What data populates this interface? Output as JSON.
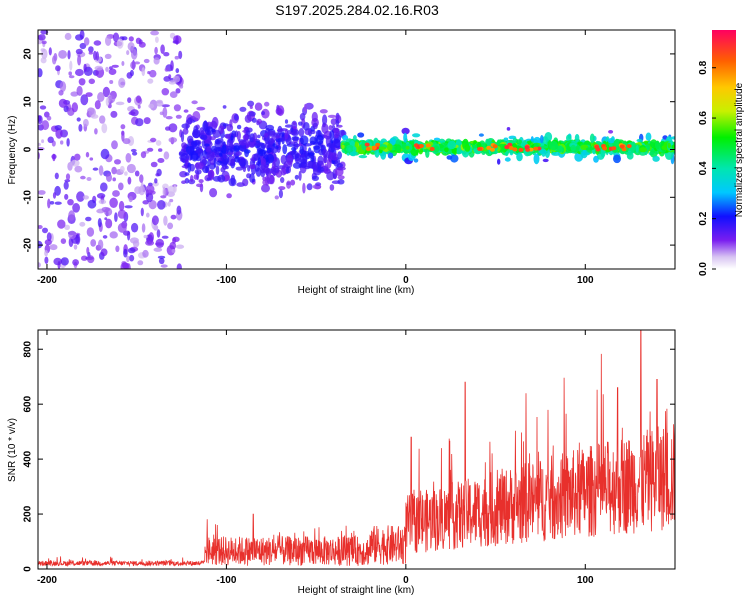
{
  "title": "S197.2025.284.02.16.R03",
  "chart_data": [
    {
      "type": "heatmap",
      "name": "spectrogram",
      "xlabel": "Height of straight line (km)",
      "ylabel": "Frequency (Hz)",
      "xlim": [
        -205,
        150
      ],
      "ylim": [
        -25,
        25
      ],
      "xticks": [
        -200,
        -100,
        0,
        100
      ],
      "yticks": [
        -20,
        -10,
        0,
        10,
        20
      ],
      "colorbar": {
        "label": "Normalized spectral amplitude",
        "range": [
          0.0,
          0.95
        ],
        "ticks": [
          "0.0",
          "0.2",
          "0.4",
          "0.6",
          "0.8"
        ],
        "tick_values": [
          0.0,
          0.2,
          0.4,
          0.6,
          0.8
        ]
      },
      "regions": [
        {
          "x": [
            -205,
            -125
          ],
          "freq_center": 0,
          "freq_spread": 25,
          "amplitude": 0.12,
          "description": "broadband noise"
        },
        {
          "x": [
            -125,
            -35
          ],
          "freq_center": 0,
          "freq_spread": 8,
          "amplitude": 0.15,
          "description": "noisy band"
        },
        {
          "x": [
            -35,
            150
          ],
          "freq_center": 0.5,
          "freq_spread": 2,
          "amplitude": 0.55,
          "description": "coherent signal"
        }
      ],
      "peak_x": [
        -18,
        10,
        45,
        60,
        70,
        110,
        120
      ]
    },
    {
      "type": "line",
      "name": "snr",
      "xlabel": "Height of straight line (km)",
      "ylabel": "SNR (10 * v/v)",
      "xlim": [
        -205,
        150
      ],
      "ylim": [
        0,
        870
      ],
      "xticks": [
        -200,
        -100,
        0,
        100
      ],
      "yticks": [
        0,
        200,
        400,
        600,
        800
      ],
      "series": [
        {
          "name": "SNR",
          "color": "#e8302c",
          "segments": [
            {
              "x": [
                -205,
                -112
              ],
              "base": 20,
              "noise": 15
            },
            {
              "x": [
                -112,
                -20
              ],
              "base": 60,
              "noise": 90
            },
            {
              "x": [
                -20,
                0
              ],
              "base": 80,
              "noise": 120
            },
            {
              "x": [
                0,
                150
              ],
              "base": 250,
              "noise": 260
            }
          ],
          "peaks": [
            {
              "x": -85,
              "y": 200
            },
            {
              "x": 3,
              "y": 480
            },
            {
              "x": 33,
              "y": 680
            },
            {
              "x": 67,
              "y": 640
            },
            {
              "x": 118,
              "y": 660
            },
            {
              "x": 131,
              "y": 870
            },
            {
              "x": 140,
              "y": 690
            }
          ]
        }
      ]
    }
  ],
  "colors": {
    "line": "#e8302c",
    "frame": "#000000"
  }
}
